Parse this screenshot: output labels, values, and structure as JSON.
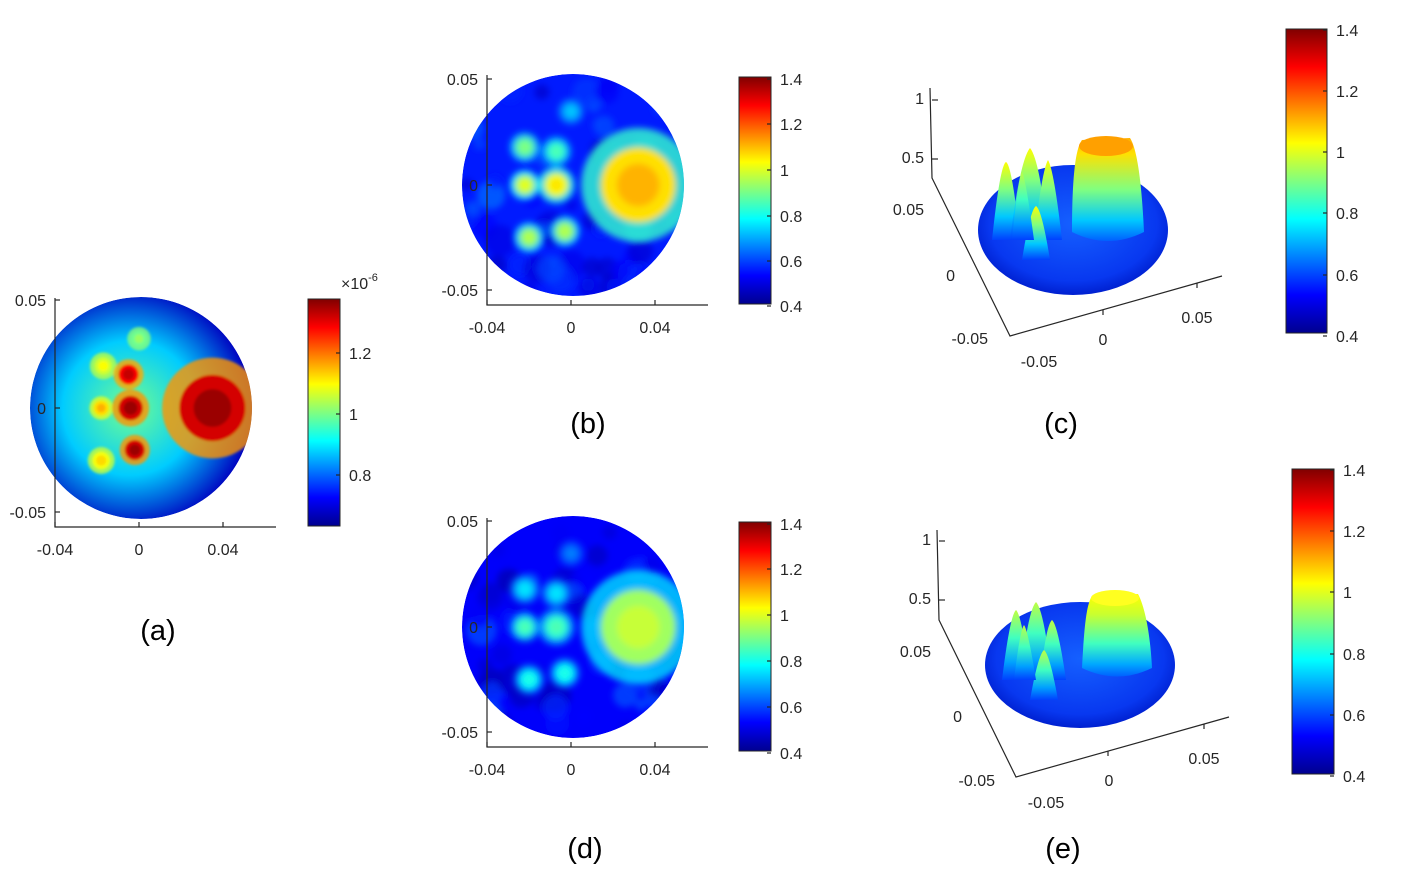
{
  "colormap": "jet",
  "colormap_stops": [
    "#00008f",
    "#0000ff",
    "#0080ff",
    "#00ffff",
    "#80ff80",
    "#ffff00",
    "#ff8000",
    "#ff0000",
    "#800000"
  ],
  "chart_data": [
    {
      "id": "a",
      "type": "heatmap",
      "caption": "(a)",
      "x_ticks": [
        "-0.04",
        "0",
        "0.04"
      ],
      "y_ticks": [
        "0.05",
        "0",
        "-0.05"
      ],
      "colorbar": {
        "ticks": [
          "1.2",
          "1",
          "0.8"
        ],
        "multiplier": "×10",
        "exponent": "-6",
        "range": [
          0.66,
          1.4
        ]
      },
      "background_level": 0.92,
      "inclusions": [
        {
          "x": 0.035,
          "y": 0.0,
          "r": 0.015,
          "value": 1.38
        },
        {
          "x": -0.017,
          "y": 0.02,
          "r": 0.004,
          "value": 1.12
        },
        {
          "x": -0.005,
          "y": 0.016,
          "r": 0.0045,
          "value": 1.35
        },
        {
          "x": 0.0,
          "y": 0.033,
          "r": 0.0035,
          "value": 1.05
        },
        {
          "x": -0.018,
          "y": 0.0,
          "r": 0.0035,
          "value": 1.18
        },
        {
          "x": -0.004,
          "y": 0.0,
          "r": 0.0055,
          "value": 1.38
        },
        {
          "x": -0.018,
          "y": -0.025,
          "r": 0.004,
          "value": 1.15
        },
        {
          "x": -0.002,
          "y": -0.02,
          "r": 0.0045,
          "value": 1.38
        }
      ]
    },
    {
      "id": "b",
      "type": "heatmap",
      "caption": "(b)",
      "x_ticks": [
        "-0.04",
        "0",
        "0.04"
      ],
      "y_ticks": [
        "0.05",
        "0",
        "-0.05"
      ],
      "colorbar": {
        "ticks": [
          "1.4",
          "1.2",
          "1",
          "0.8",
          "0.6",
          "0.4"
        ],
        "range": [
          0.4,
          1.4
        ]
      },
      "background_level": 0.55,
      "inclusions": [
        {
          "x": 0.032,
          "y": 0.0,
          "r": 0.017,
          "value": 1.1
        },
        {
          "x": -0.022,
          "y": 0.018,
          "r": 0.0045,
          "value": 0.9
        },
        {
          "x": -0.007,
          "y": 0.016,
          "r": 0.0045,
          "value": 0.85
        },
        {
          "x": -0.022,
          "y": 0.0,
          "r": 0.0045,
          "value": 1.0
        },
        {
          "x": -0.007,
          "y": 0.0,
          "r": 0.0055,
          "value": 1.05
        },
        {
          "x": -0.02,
          "y": -0.025,
          "r": 0.0045,
          "value": 0.95
        },
        {
          "x": -0.003,
          "y": -0.022,
          "r": 0.0045,
          "value": 0.95
        },
        {
          "x": 0.0,
          "y": 0.035,
          "r": 0.004,
          "value": 0.72
        }
      ]
    },
    {
      "id": "c",
      "type": "surface",
      "caption": "(c)",
      "z_ticks": [
        "1",
        "0.5"
      ],
      "y_ticks": [
        "0.05",
        "0",
        "-0.05"
      ],
      "x_ticks": [
        "-0.05",
        "0",
        "0.05"
      ],
      "colorbar": {
        "ticks": [
          "1.4",
          "1.2",
          "1",
          "0.8",
          "0.6",
          "0.4"
        ],
        "range": [
          0.4,
          1.4
        ]
      }
    },
    {
      "id": "d",
      "type": "heatmap",
      "caption": "(d)",
      "x_ticks": [
        "-0.04",
        "0",
        "0.04"
      ],
      "y_ticks": [
        "0.05",
        "0",
        "-0.05"
      ],
      "colorbar": {
        "ticks": [
          "1.4",
          "1.2",
          "1",
          "0.8",
          "0.6",
          "0.4"
        ],
        "range": [
          0.4,
          1.4
        ]
      },
      "background_level": 0.52,
      "inclusions": [
        {
          "x": 0.032,
          "y": 0.0,
          "r": 0.017,
          "value": 0.97
        },
        {
          "x": -0.022,
          "y": 0.018,
          "r": 0.0045,
          "value": 0.75
        },
        {
          "x": -0.007,
          "y": 0.016,
          "r": 0.0045,
          "value": 0.75
        },
        {
          "x": -0.022,
          "y": 0.0,
          "r": 0.0045,
          "value": 0.85
        },
        {
          "x": -0.007,
          "y": 0.0,
          "r": 0.0055,
          "value": 0.85
        },
        {
          "x": -0.02,
          "y": -0.025,
          "r": 0.0045,
          "value": 0.8
        },
        {
          "x": -0.003,
          "y": -0.022,
          "r": 0.0045,
          "value": 0.8
        },
        {
          "x": 0.0,
          "y": 0.035,
          "r": 0.004,
          "value": 0.65
        }
      ]
    },
    {
      "id": "e",
      "type": "surface",
      "caption": "(e)",
      "z_ticks": [
        "1",
        "0.5"
      ],
      "y_ticks": [
        "0.05",
        "0",
        "-0.05"
      ],
      "x_ticks": [
        "-0.05",
        "0",
        "0.05"
      ],
      "colorbar": {
        "ticks": [
          "1.4",
          "1.2",
          "1",
          "0.8",
          "0.6",
          "0.4"
        ],
        "range": [
          0.4,
          1.4
        ]
      }
    }
  ]
}
